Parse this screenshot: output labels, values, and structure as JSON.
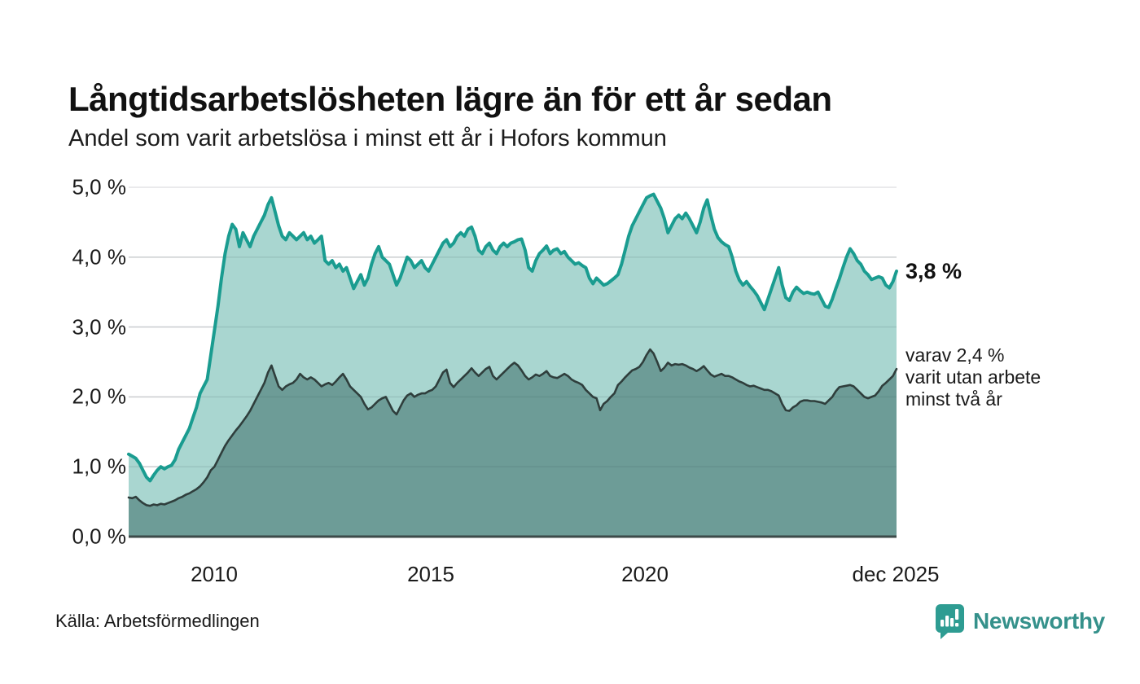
{
  "header": {
    "title": "Långtidsarbetslösheten lägre än för ett år sedan",
    "subtitle": "Andel som varit arbetslösa i minst ett år i Hofors kommun"
  },
  "annotations": {
    "latest_value": "3,8 %",
    "secondary_lines": [
      "varav 2,4 %",
      "varit utan arbete",
      "minst två år"
    ]
  },
  "footer": {
    "source": "Källa: Arbetsförmedlingen",
    "logo_text": "Newsworthy",
    "logo_icon": "bar-chart-speech-bubble-icon"
  },
  "colors": {
    "line_one_year": "#1A9C90",
    "fill_one_year": "#A9D6D0",
    "line_two_year": "#2F3E3C",
    "fill_two_year": "#6D9C97",
    "grid": "#E3E3E6",
    "axis": "#3C4A49",
    "logo_teal": "#2E9C92",
    "text": "#111111"
  },
  "chart_data": {
    "type": "area",
    "title": "Långtidsarbetslösheten lägre än för ett år sedan",
    "subtitle": "Andel som varit arbetslösa i minst ett år i Hofors kommun",
    "unit": "%",
    "frequency": "monthly",
    "x_start": "2008-01",
    "x_end": "2025-12",
    "ylim": [
      0,
      5
    ],
    "grid": "horizontal",
    "legend_position": "right-annotations",
    "x_ticks": [
      "2010",
      "2015",
      "2020",
      "dec 2025"
    ],
    "y_ticks": [
      "0,0 %",
      "1,0 %",
      "2,0 %",
      "3,0 %",
      "4,0 %",
      "5,0 %"
    ],
    "series": [
      {
        "name": "Andel arbetslösa minst ett år",
        "latest_value": 3.8,
        "values": [
          1.18,
          1.15,
          1.12,
          1.05,
          0.95,
          0.85,
          0.8,
          0.88,
          0.95,
          1.0,
          0.97,
          1.0,
          1.02,
          1.1,
          1.25,
          1.35,
          1.45,
          1.55,
          1.7,
          1.85,
          2.05,
          2.15,
          2.25,
          2.6,
          2.95,
          3.3,
          3.7,
          4.05,
          4.3,
          4.47,
          4.4,
          4.15,
          4.35,
          4.25,
          4.15,
          4.3,
          4.4,
          4.5,
          4.6,
          4.75,
          4.85,
          4.65,
          4.45,
          4.3,
          4.25,
          4.35,
          4.3,
          4.25,
          4.3,
          4.35,
          4.25,
          4.3,
          4.2,
          4.25,
          4.3,
          3.95,
          3.9,
          3.95,
          3.85,
          3.9,
          3.8,
          3.85,
          3.7,
          3.55,
          3.65,
          3.75,
          3.6,
          3.7,
          3.9,
          4.05,
          4.15,
          4.0,
          3.95,
          3.9,
          3.75,
          3.6,
          3.7,
          3.85,
          4.0,
          3.95,
          3.85,
          3.9,
          3.95,
          3.85,
          3.8,
          3.9,
          4.0,
          4.1,
          4.2,
          4.25,
          4.15,
          4.2,
          4.3,
          4.35,
          4.3,
          4.4,
          4.43,
          4.3,
          4.1,
          4.05,
          4.15,
          4.2,
          4.1,
          4.05,
          4.15,
          4.2,
          4.15,
          4.2,
          4.22,
          4.25,
          4.26,
          4.1,
          3.85,
          3.8,
          3.95,
          4.05,
          4.1,
          4.16,
          4.05,
          4.1,
          4.12,
          4.05,
          4.08,
          4.0,
          3.95,
          3.9,
          3.92,
          3.88,
          3.85,
          3.7,
          3.62,
          3.7,
          3.65,
          3.6,
          3.62,
          3.66,
          3.7,
          3.75,
          3.9,
          4.1,
          4.3,
          4.45,
          4.55,
          4.65,
          4.75,
          4.85,
          4.88,
          4.9,
          4.8,
          4.7,
          4.55,
          4.35,
          4.45,
          4.55,
          4.6,
          4.55,
          4.63,
          4.55,
          4.45,
          4.35,
          4.5,
          4.7,
          4.82,
          4.6,
          4.4,
          4.28,
          4.22,
          4.18,
          4.15,
          4.0,
          3.8,
          3.67,
          3.6,
          3.65,
          3.58,
          3.52,
          3.45,
          3.35,
          3.25,
          3.4,
          3.55,
          3.7,
          3.85,
          3.6,
          3.42,
          3.38,
          3.5,
          3.57,
          3.52,
          3.48,
          3.5,
          3.48,
          3.47,
          3.5,
          3.4,
          3.3,
          3.28,
          3.4,
          3.55,
          3.69,
          3.85,
          4.0,
          4.12,
          4.05,
          3.95,
          3.9,
          3.8,
          3.75,
          3.68,
          3.7,
          3.72,
          3.7,
          3.6,
          3.56,
          3.65,
          3.8
        ]
      },
      {
        "name": "Andel arbetslösa minst två år",
        "latest_value": 2.4,
        "values": [
          0.56,
          0.55,
          0.57,
          0.52,
          0.48,
          0.45,
          0.44,
          0.46,
          0.45,
          0.47,
          0.46,
          0.48,
          0.5,
          0.52,
          0.55,
          0.57,
          0.6,
          0.62,
          0.65,
          0.68,
          0.72,
          0.78,
          0.85,
          0.95,
          1.0,
          1.1,
          1.2,
          1.3,
          1.38,
          1.45,
          1.52,
          1.58,
          1.65,
          1.72,
          1.8,
          1.9,
          2.0,
          2.1,
          2.2,
          2.35,
          2.45,
          2.3,
          2.15,
          2.1,
          2.15,
          2.18,
          2.2,
          2.25,
          2.33,
          2.28,
          2.25,
          2.28,
          2.25,
          2.2,
          2.15,
          2.18,
          2.2,
          2.17,
          2.22,
          2.28,
          2.33,
          2.25,
          2.15,
          2.1,
          2.05,
          2.0,
          1.9,
          1.82,
          1.85,
          1.9,
          1.95,
          1.98,
          2.0,
          1.9,
          1.8,
          1.75,
          1.85,
          1.95,
          2.02,
          2.05,
          2.0,
          2.03,
          2.05,
          2.05,
          2.08,
          2.1,
          2.15,
          2.25,
          2.35,
          2.39,
          2.2,
          2.14,
          2.2,
          2.25,
          2.3,
          2.35,
          2.41,
          2.35,
          2.3,
          2.35,
          2.4,
          2.43,
          2.3,
          2.25,
          2.3,
          2.35,
          2.4,
          2.45,
          2.49,
          2.45,
          2.38,
          2.3,
          2.25,
          2.28,
          2.32,
          2.3,
          2.33,
          2.37,
          2.3,
          2.28,
          2.27,
          2.3,
          2.33,
          2.3,
          2.25,
          2.22,
          2.2,
          2.17,
          2.1,
          2.05,
          2.0,
          1.98,
          1.81,
          1.9,
          1.94,
          2.0,
          2.05,
          2.17,
          2.22,
          2.28,
          2.33,
          2.38,
          2.4,
          2.43,
          2.5,
          2.6,
          2.68,
          2.62,
          2.5,
          2.37,
          2.42,
          2.49,
          2.45,
          2.47,
          2.46,
          2.47,
          2.45,
          2.42,
          2.4,
          2.37,
          2.4,
          2.44,
          2.38,
          2.32,
          2.29,
          2.31,
          2.33,
          2.3,
          2.3,
          2.28,
          2.25,
          2.22,
          2.2,
          2.17,
          2.15,
          2.16,
          2.14,
          2.12,
          2.1,
          2.1,
          2.08,
          2.05,
          2.02,
          1.9,
          1.81,
          1.8,
          1.85,
          1.88,
          1.93,
          1.95,
          1.95,
          1.94,
          1.94,
          1.93,
          1.92,
          1.9,
          1.95,
          2.0,
          2.08,
          2.14,
          2.15,
          2.16,
          2.17,
          2.15,
          2.1,
          2.05,
          2.0,
          1.98,
          2.0,
          2.02,
          2.08,
          2.16,
          2.2,
          2.25,
          2.3,
          2.4
        ]
      }
    ]
  }
}
